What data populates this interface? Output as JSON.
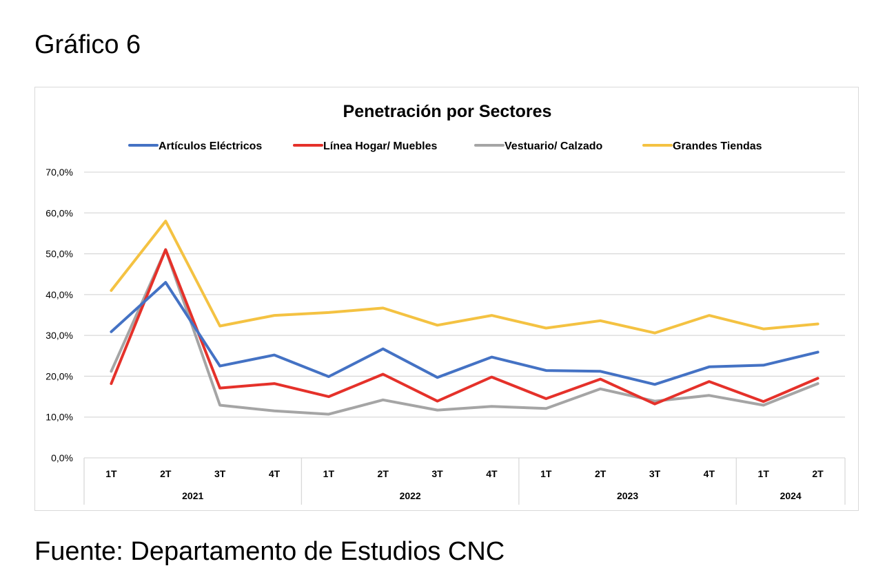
{
  "figure": {
    "label": "Gráfico 6",
    "source": "Fuente: Departamento de Estudios CNC"
  },
  "chart_data": {
    "type": "line",
    "title": "Penetración por Sectores",
    "xlabel": "",
    "ylabel": "",
    "ylim": [
      0,
      70
    ],
    "yticks": [
      0,
      10,
      20,
      30,
      40,
      50,
      60,
      70
    ],
    "ytick_labels": [
      "0,0%",
      "10,0%",
      "20,0%",
      "30,0%",
      "40,0%",
      "50,0%",
      "60,0%",
      "70,0%"
    ],
    "y_unit": "percent",
    "grid": true,
    "legend_position": "top",
    "categories": [
      "1T",
      "2T",
      "3T",
      "4T",
      "1T",
      "2T",
      "3T",
      "4T",
      "1T",
      "2T",
      "3T",
      "4T",
      "1T",
      "2T"
    ],
    "category_groups": [
      {
        "label": "2021",
        "count": 4
      },
      {
        "label": "2022",
        "count": 4
      },
      {
        "label": "2023",
        "count": 4
      },
      {
        "label": "2024",
        "count": 2
      }
    ],
    "series": [
      {
        "name": "Artículos Eléctricos",
        "color": "#4472c4",
        "values": [
          30.9,
          43.0,
          22.5,
          25.2,
          19.9,
          26.7,
          19.7,
          24.7,
          21.4,
          21.2,
          18.0,
          22.3,
          22.7,
          25.9
        ]
      },
      {
        "name": "Línea Hogar/ Muebles",
        "color": "#e5312a",
        "values": [
          18.2,
          51.0,
          17.1,
          18.2,
          15.0,
          20.5,
          13.9,
          19.8,
          14.5,
          19.3,
          13.2,
          18.7,
          13.8,
          19.5
        ]
      },
      {
        "name": "Vestuario/ Calzado",
        "color": "#a5a5a5",
        "values": [
          21.2,
          51.0,
          12.9,
          11.5,
          10.7,
          14.2,
          11.7,
          12.6,
          12.1,
          16.9,
          13.9,
          15.3,
          12.9,
          18.2
        ]
      },
      {
        "name": "Grandes Tiendas",
        "color": "#f4c242",
        "values": [
          41.0,
          58.0,
          32.3,
          34.9,
          35.6,
          36.7,
          32.5,
          34.9,
          31.8,
          33.6,
          30.6,
          34.9,
          31.6,
          32.8
        ]
      }
    ]
  }
}
